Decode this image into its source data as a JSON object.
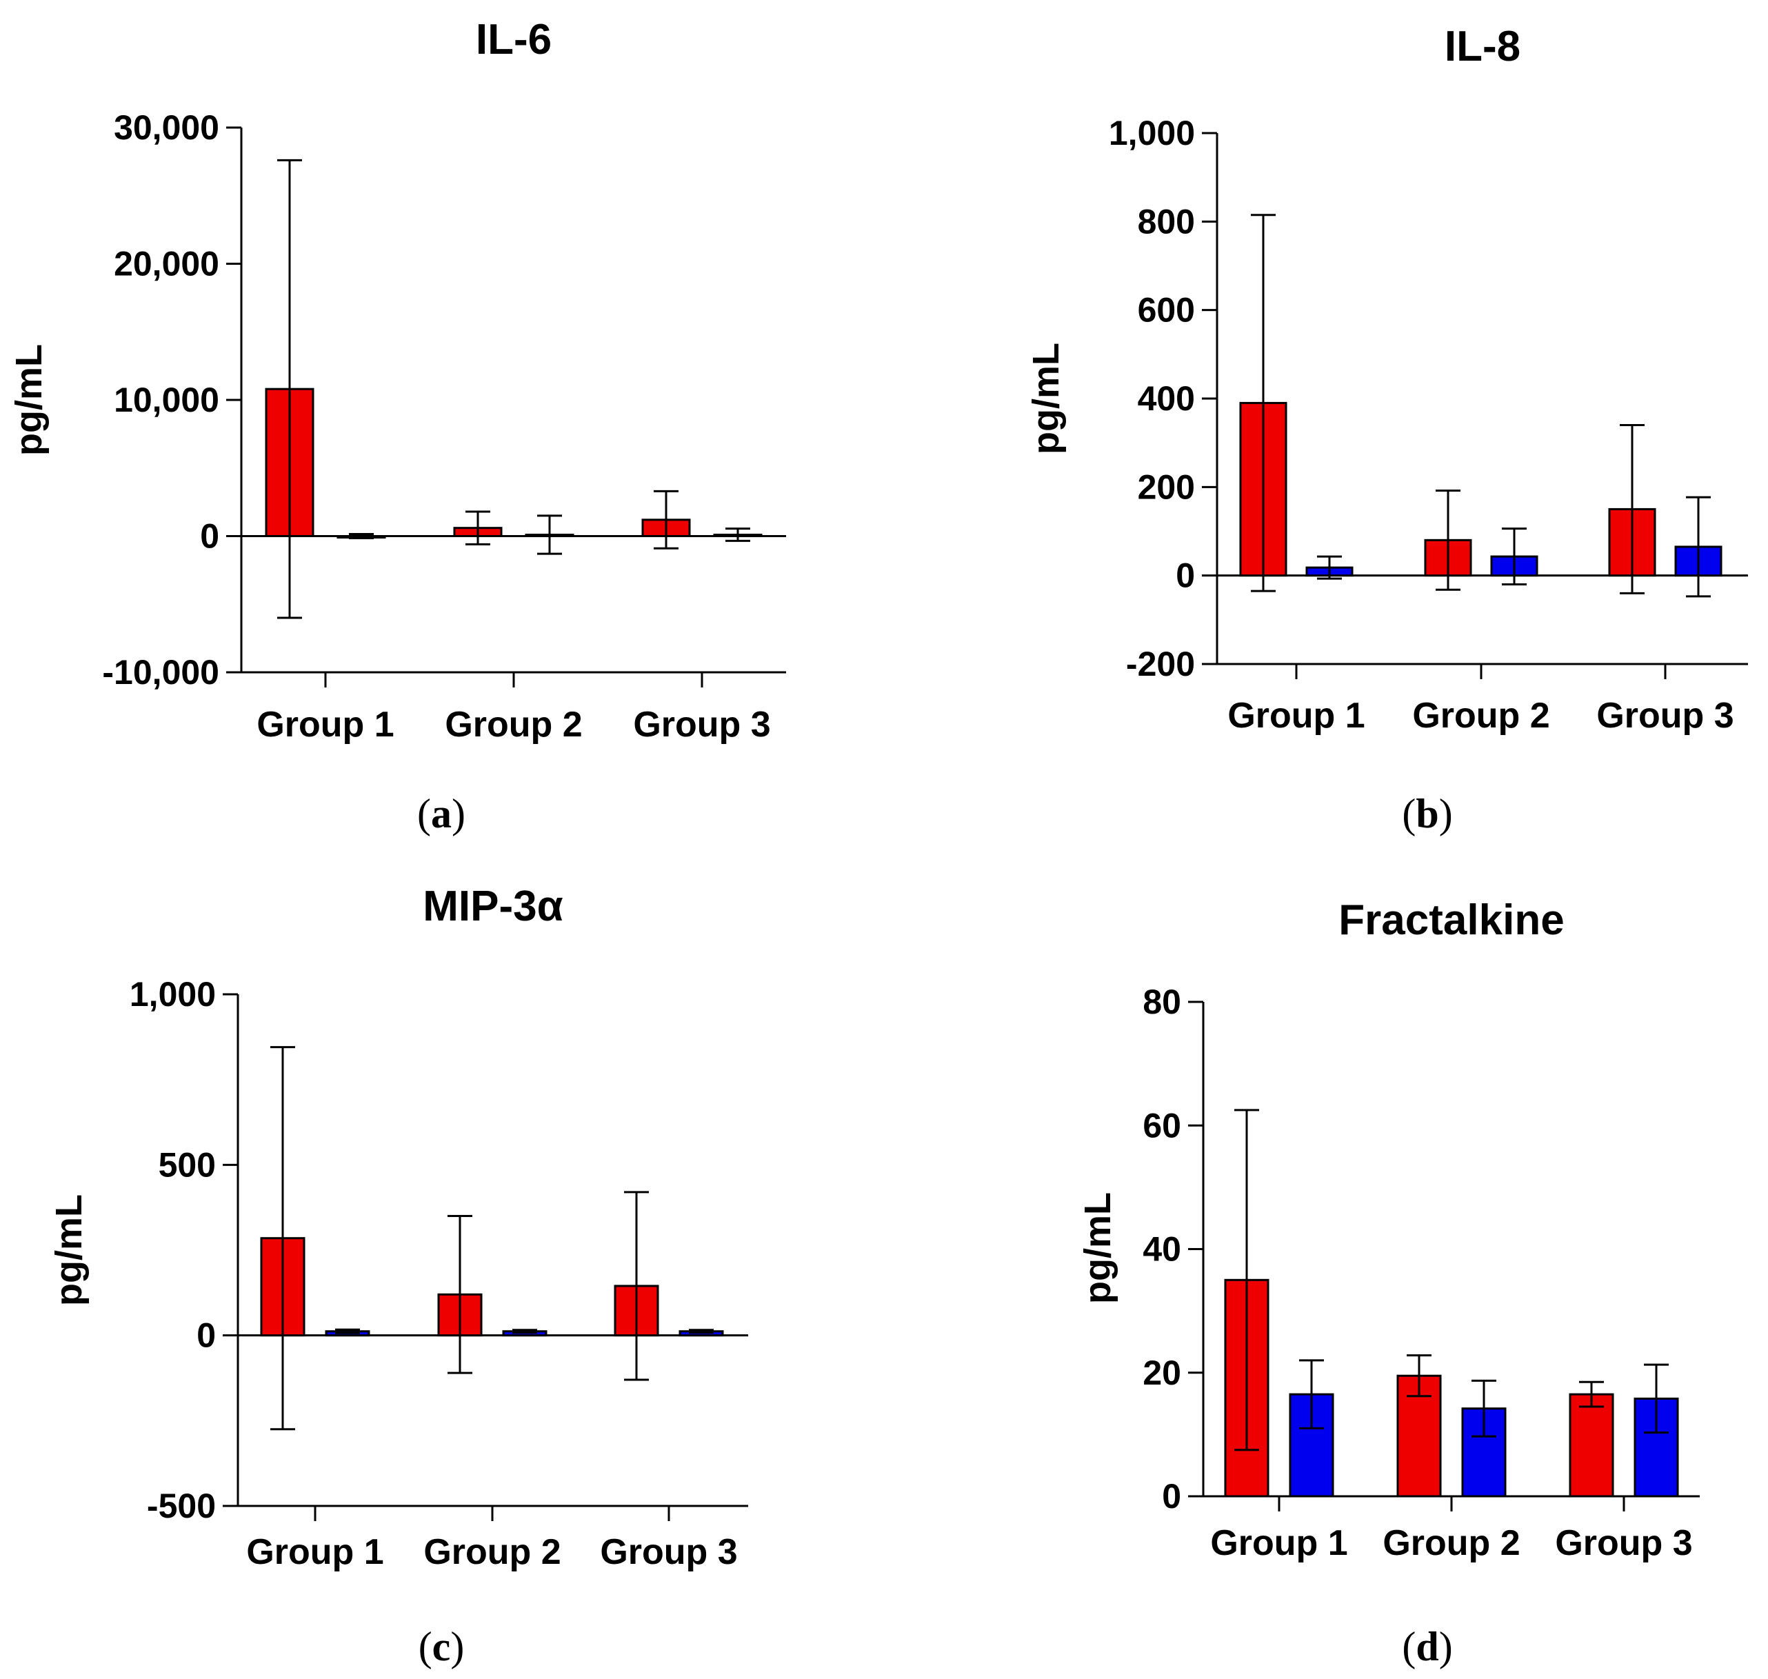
{
  "series_colors": {
    "red": "#ee0000",
    "blue": "#0000ee"
  },
  "chart_data": [
    {
      "type": "bar",
      "title": "IL-6",
      "panel_label": "a",
      "ylabel": "pg/mL",
      "xlabel": "",
      "categories": [
        "Group 1",
        "Group 2",
        "Group 3"
      ],
      "ylim": [
        -10000,
        30000
      ],
      "yticks": [
        -10000,
        0,
        10000,
        20000,
        30000
      ],
      "ytick_labels": [
        "-10,000",
        "0",
        "10,000",
        "20,000",
        "30,000"
      ],
      "series": [
        {
          "name": "red",
          "color": "#ee0000",
          "values": [
            10800,
            600,
            1200
          ],
          "error": [
            16800,
            1200,
            2100
          ]
        },
        {
          "name": "blue",
          "color": "#0000ee",
          "values": [
            0,
            100,
            100
          ],
          "error": [
            150,
            1400,
            450
          ]
        }
      ]
    },
    {
      "type": "bar",
      "title": "IL-8",
      "panel_label": "b",
      "ylabel": "pg/mL",
      "xlabel": "",
      "categories": [
        "Group 1",
        "Group 2",
        "Group 3"
      ],
      "ylim": [
        -200,
        1000
      ],
      "yticks": [
        -200,
        0,
        200,
        400,
        600,
        800,
        1000
      ],
      "ytick_labels": [
        "-200",
        "0",
        "200",
        "400",
        "600",
        "800",
        "1,000"
      ],
      "series": [
        {
          "name": "red",
          "color": "#ee0000",
          "values": [
            390,
            80,
            150
          ],
          "error": [
            425,
            112,
            190
          ]
        },
        {
          "name": "blue",
          "color": "#0000ee",
          "values": [
            18,
            43,
            65
          ],
          "error": [
            25,
            63,
            112
          ]
        }
      ]
    },
    {
      "type": "bar",
      "title": "MIP-3α",
      "panel_label": "c",
      "ylabel": "pg/mL",
      "xlabel": "",
      "categories": [
        "Group 1",
        "Group 2",
        "Group 3"
      ],
      "ylim": [
        -500,
        1000
      ],
      "yticks": [
        -500,
        0,
        500,
        1000
      ],
      "ytick_labels": [
        "-500",
        "0",
        "500",
        "1,000"
      ],
      "series": [
        {
          "name": "red",
          "color": "#ee0000",
          "values": [
            285,
            120,
            145
          ],
          "error": [
            560,
            230,
            275
          ]
        },
        {
          "name": "blue",
          "color": "#0000ee",
          "values": [
            12,
            12,
            12
          ],
          "error": [
            5,
            4,
            4
          ]
        }
      ]
    },
    {
      "type": "bar",
      "title": "Fractalkine",
      "panel_label": "d",
      "ylabel": "pg/mL",
      "xlabel": "",
      "categories": [
        "Group 1",
        "Group 2",
        "Group 3"
      ],
      "ylim": [
        0,
        80
      ],
      "yticks": [
        0,
        20,
        40,
        60,
        80
      ],
      "ytick_labels": [
        "0",
        "20",
        "40",
        "60",
        "80"
      ],
      "series": [
        {
          "name": "red",
          "color": "#ee0000",
          "values": [
            35,
            19.5,
            16.5
          ],
          "error": [
            27.5,
            3.3,
            2
          ]
        },
        {
          "name": "blue",
          "color": "#0000ee",
          "values": [
            16.5,
            14.2,
            15.8
          ],
          "error": [
            5.5,
            4.5,
            5.5
          ]
        }
      ]
    }
  ]
}
